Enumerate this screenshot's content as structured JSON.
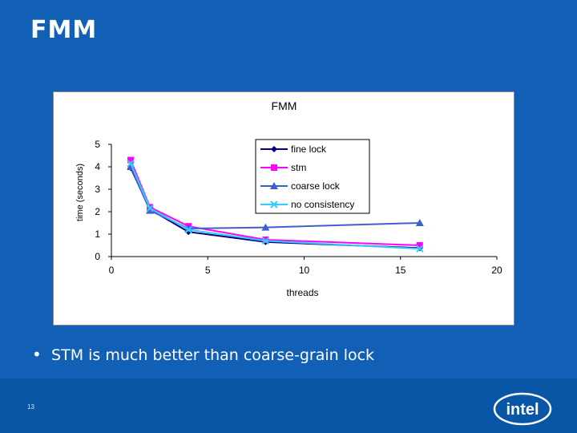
{
  "slide": {
    "title": "FMM",
    "bullet": "STM is much better than coarse-grain lock",
    "page_number": "13",
    "logo_text": "intel"
  },
  "colors": {
    "background": "#1160b5",
    "fine_lock": "#000080",
    "stm": "#ff00ff",
    "coarse_lock": "#3f5fd0",
    "no_consistency": "#33ccff"
  },
  "chart_data": {
    "type": "line",
    "title": "FMM",
    "xlabel": "threads",
    "ylabel": "time (seconds)",
    "xlim": [
      0,
      20
    ],
    "ylim": [
      0,
      5
    ],
    "xticks": [
      0,
      5,
      10,
      15,
      20
    ],
    "yticks": [
      0,
      1,
      2,
      3,
      4,
      5
    ],
    "x": [
      1,
      2,
      4,
      8,
      16
    ],
    "legend_position": "top-right",
    "series": [
      {
        "name": "fine lock",
        "values": [
          3.95,
          2.1,
          1.1,
          0.65,
          0.38
        ]
      },
      {
        "name": "stm",
        "values": [
          4.3,
          2.2,
          1.35,
          0.75,
          0.5
        ]
      },
      {
        "name": "coarse lock",
        "values": [
          4.0,
          2.05,
          1.25,
          1.3,
          1.5
        ]
      },
      {
        "name": "no consistency",
        "values": [
          4.15,
          2.15,
          1.2,
          0.7,
          0.35
        ]
      }
    ]
  }
}
